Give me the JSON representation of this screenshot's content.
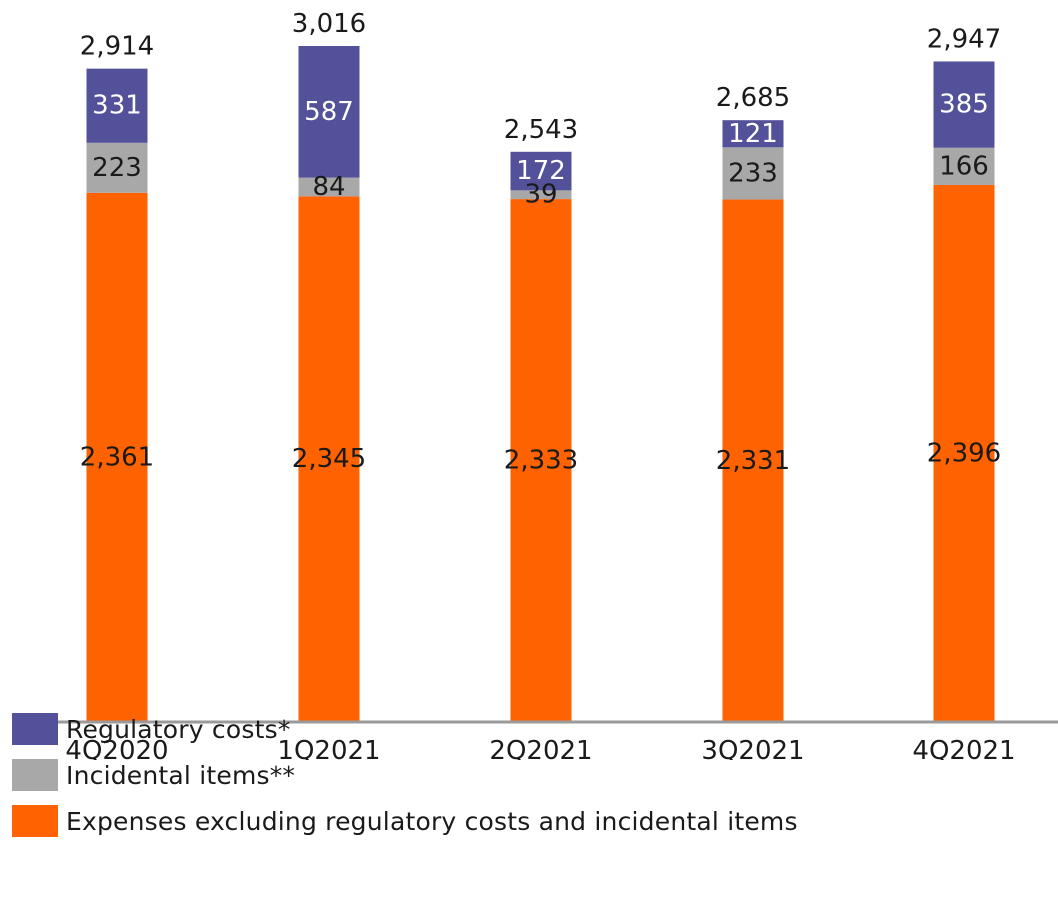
{
  "chart_data": {
    "type": "bar",
    "stacked": true,
    "categories": [
      "4Q2020",
      "1Q2021",
      "2Q2021",
      "3Q2021",
      "4Q2021"
    ],
    "series": [
      {
        "name": "Expenses excluding regulatory costs and incidental items",
        "color": "#FF6200",
        "values": [
          2361,
          2345,
          2333,
          2331,
          2396
        ]
      },
      {
        "name": "Incidental items**",
        "color": "#A8A8A8",
        "values": [
          223,
          84,
          39,
          233,
          166
        ]
      },
      {
        "name": "Regulatory costs*",
        "color": "#525199",
        "values": [
          331,
          587,
          172,
          121,
          385
        ]
      }
    ],
    "value_labels": {
      "Expenses excluding regulatory costs and incidental items": [
        "2,361",
        "2,345",
        "2,333",
        "2,331",
        "2,396"
      ],
      "Incidental items**": [
        "223",
        "84",
        "39",
        "233",
        "166"
      ],
      "Regulatory costs*": [
        "331",
        "587",
        "172",
        "121",
        "385"
      ]
    },
    "totals": [
      2914,
      3016,
      2543,
      2685,
      2947
    ],
    "total_labels": [
      "2,914",
      "3,016",
      "2,543",
      "2,685",
      "2,947"
    ],
    "ylim": [
      0,
      3016
    ],
    "grid": false,
    "legend_position": "bottom-left"
  },
  "legend": {
    "items": [
      {
        "label": "Regulatory costs*",
        "color": "#525199"
      },
      {
        "label": "Incidental items**",
        "color": "#A8A8A8"
      },
      {
        "label": "Expenses excluding regulatory costs and incidental items",
        "color": "#FF6200"
      }
    ]
  }
}
